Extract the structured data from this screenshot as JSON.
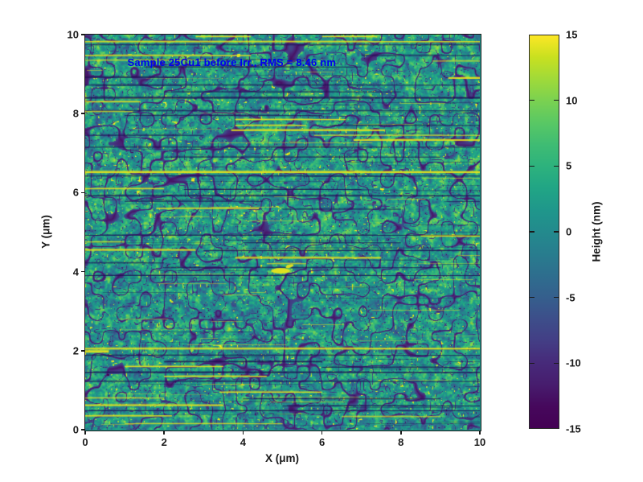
{
  "chart_data": {
    "type": "heatmap",
    "description": "AFM surface height map, 10x10 micrometer scan, viridis colormap",
    "annotation": {
      "text": "Sample 25Cu1 before Irr., RMS = 8.46 nm",
      "color": "#0000ee",
      "x_um": 1.1,
      "y_um": 9.3
    },
    "xlabel": "X (μm)",
    "ylabel": "Y (μm)",
    "xlim": [
      0,
      10
    ],
    "ylim": [
      0,
      10
    ],
    "xticks": {
      "values": [
        0,
        2,
        4,
        6,
        8,
        10
      ],
      "labels": [
        "0",
        "2",
        "4",
        "6",
        "8",
        "10"
      ]
    },
    "yticks": {
      "values": [
        0,
        2,
        4,
        6,
        8,
        10
      ],
      "labels": [
        "0",
        "2",
        "4",
        "6",
        "8",
        "10"
      ]
    },
    "grid": false,
    "frame_color": "#1a1a1a",
    "colorbar": {
      "label": "Height (nm)",
      "min": -15,
      "max": 15,
      "tick_values": [
        15,
        10,
        5,
        0,
        -5,
        -10,
        -15
      ],
      "tick_labels": [
        "15",
        "10",
        "5",
        "0",
        "-5",
        "-10",
        "-15"
      ],
      "notch_values": [
        10,
        5,
        0,
        -5,
        -10
      ],
      "colormap": "viridis"
    },
    "viridis_stops": [
      "#440154",
      "#46085c",
      "#471d6e",
      "#472a7a",
      "#433e85",
      "#3d4e8a",
      "#355f8d",
      "#2e6e8e",
      "#287d8e",
      "#238a8d",
      "#1f978b",
      "#21a585",
      "#2db27d",
      "#3fbc73",
      "#59c864",
      "#7ad151",
      "#a0da39",
      "#c8e020",
      "#fde725"
    ],
    "texture": {
      "seed": 7,
      "base_level": 0.57,
      "grain_amplitude": 0.8,
      "speckle_threshold": 0.9,
      "pit_threshold": 0.07,
      "crack_threshold": 0.935,
      "streak_colors": {
        "y": "#e8e41c",
        "d": "#1e1056"
      },
      "faint_dark_segments": 95,
      "faint_yellow_segments": 55,
      "blob": {
        "x": 4.95,
        "y": 4.02,
        "rx": 12,
        "ry": 3.5,
        "tail_x": 5.18,
        "tail_y": 4.14,
        "tail_rx": 5,
        "tail_ry": 2
      },
      "streaks": [
        {
          "y": 9.95,
          "x0": 2.8,
          "x1": 4.2,
          "c": "y",
          "w": 1.5
        },
        {
          "y": 9.95,
          "x0": 6.0,
          "x1": 7.4,
          "c": "y",
          "w": 1.5
        },
        {
          "y": 9.82,
          "x0": 0,
          "x1": 10,
          "c": "y",
          "w": 1.5
        },
        {
          "y": 9.74,
          "x0": 0,
          "x1": 10,
          "c": "d",
          "w": 1
        },
        {
          "y": 9.47,
          "x0": 0,
          "x1": 4.2,
          "c": "y",
          "w": 1.5
        },
        {
          "y": 9.47,
          "x0": 7,
          "x1": 10,
          "c": "d",
          "w": 1
        },
        {
          "y": 9.35,
          "x0": 0,
          "x1": 3.4,
          "c": "y",
          "w": 1
        },
        {
          "y": 9.33,
          "x0": 8.8,
          "x1": 10,
          "c": "y",
          "w": 1
        },
        {
          "y": 9.18,
          "x0": 1.5,
          "x1": 7,
          "c": "d",
          "w": 1
        },
        {
          "y": 8.92,
          "x0": 0,
          "x1": 2.5,
          "c": "d",
          "w": 1.5
        },
        {
          "y": 8.9,
          "x0": 9.2,
          "x1": 10,
          "c": "y",
          "w": 2
        },
        {
          "y": 8.72,
          "x0": 0,
          "x1": 10,
          "c": "d",
          "w": 1
        },
        {
          "y": 8.55,
          "x0": 2,
          "x1": 8,
          "c": "d",
          "w": 1
        },
        {
          "y": 8.4,
          "x0": 0,
          "x1": 10,
          "c": "d",
          "w": 2
        },
        {
          "y": 8.3,
          "x0": 0,
          "x1": 1.4,
          "c": "y",
          "w": 1.5
        },
        {
          "y": 8.07,
          "x0": 0,
          "x1": 10,
          "c": "d",
          "w": 1
        },
        {
          "y": 8.05,
          "x0": 0,
          "x1": 1.2,
          "c": "y",
          "w": 1
        },
        {
          "y": 7.95,
          "x0": 1,
          "x1": 6,
          "c": "d",
          "w": 1
        },
        {
          "y": 7.85,
          "x0": 3.8,
          "x1": 6.6,
          "c": "y",
          "w": 1.5
        },
        {
          "y": 7.7,
          "x0": 3.8,
          "x1": 5.6,
          "c": "y",
          "w": 1.5
        },
        {
          "y": 7.7,
          "x0": 6.2,
          "x1": 10,
          "c": "d",
          "w": 1
        },
        {
          "y": 7.58,
          "x0": 3.7,
          "x1": 7.6,
          "c": "y",
          "w": 2
        },
        {
          "y": 7.45,
          "x0": 5.8,
          "x1": 10,
          "c": "y",
          "w": 1
        },
        {
          "y": 7.45,
          "x0": 0,
          "x1": 3,
          "c": "d",
          "w": 1
        },
        {
          "y": 7.33,
          "x0": 6.8,
          "x1": 10,
          "c": "y",
          "w": 2
        },
        {
          "y": 7.15,
          "x0": 0,
          "x1": 10,
          "c": "d",
          "w": 1
        },
        {
          "y": 6.9,
          "x0": 2,
          "x1": 9,
          "c": "d",
          "w": 1
        },
        {
          "y": 6.52,
          "x0": 0,
          "x1": 10,
          "c": "y",
          "w": 2.5
        },
        {
          "y": 6.42,
          "x0": 0,
          "x1": 10,
          "c": "d",
          "w": 1
        },
        {
          "y": 6.1,
          "x0": 0,
          "x1": 2,
          "c": "y",
          "w": 1.5
        },
        {
          "y": 6.08,
          "x0": 2.5,
          "x1": 7,
          "c": "d",
          "w": 1
        },
        {
          "y": 5.92,
          "x0": 0,
          "x1": 10,
          "c": "d",
          "w": 1.5
        },
        {
          "y": 5.78,
          "x0": 1,
          "x1": 4.5,
          "c": "d",
          "w": 1
        },
        {
          "y": 5.6,
          "x0": 1.8,
          "x1": 4.4,
          "c": "y",
          "w": 1.5
        },
        {
          "y": 5.58,
          "x0": 5,
          "x1": 8,
          "c": "d",
          "w": 1
        },
        {
          "y": 4.92,
          "x0": 0,
          "x1": 10,
          "c": "d",
          "w": 1
        },
        {
          "y": 4.9,
          "x0": 8.5,
          "x1": 10,
          "c": "y",
          "w": 1.5
        },
        {
          "y": 4.75,
          "x0": 0,
          "x1": 1,
          "c": "y",
          "w": 1
        },
        {
          "y": 4.73,
          "x0": 4,
          "x1": 8,
          "c": "d",
          "w": 1
        },
        {
          "y": 4.55,
          "x0": 0,
          "x1": 2.8,
          "c": "y",
          "w": 2
        },
        {
          "y": 4.53,
          "x0": 3,
          "x1": 10,
          "c": "d",
          "w": 1
        },
        {
          "y": 4.35,
          "x0": 3.8,
          "x1": 7.5,
          "c": "y",
          "w": 2
        },
        {
          "y": 4.22,
          "x0": 0,
          "x1": 2,
          "c": "d",
          "w": 1
        },
        {
          "y": 4.2,
          "x0": 4.6,
          "x1": 5.6,
          "c": "y",
          "w": 1
        },
        {
          "y": 4.1,
          "x0": 2,
          "x1": 9,
          "c": "d",
          "w": 1
        },
        {
          "y": 3.9,
          "x0": 0,
          "x1": 10,
          "c": "d",
          "w": 1
        },
        {
          "y": 2.05,
          "x0": 0,
          "x1": 10,
          "c": "y",
          "w": 2
        },
        {
          "y": 1.98,
          "x0": 0,
          "x1": 0.6,
          "c": "y",
          "w": 3
        },
        {
          "y": 1.88,
          "x0": 0,
          "x1": 10,
          "c": "d",
          "w": 1
        },
        {
          "y": 1.72,
          "x0": 2,
          "x1": 6,
          "c": "d",
          "w": 1.5
        },
        {
          "y": 1.6,
          "x0": 1,
          "x1": 3.5,
          "c": "y",
          "w": 1.5
        },
        {
          "y": 1.58,
          "x0": 6,
          "x1": 10,
          "c": "d",
          "w": 1
        },
        {
          "y": 1.45,
          "x0": 0,
          "x1": 10,
          "c": "d",
          "w": 1.5
        },
        {
          "y": 1.35,
          "x0": 2,
          "x1": 4.6,
          "c": "y",
          "w": 1.5
        },
        {
          "y": 1.22,
          "x0": 0,
          "x1": 10,
          "c": "d",
          "w": 1
        },
        {
          "y": 0.95,
          "x0": 3.4,
          "x1": 6,
          "c": "y",
          "w": 1.5
        },
        {
          "y": 0.8,
          "x0": 0,
          "x1": 2,
          "c": "y",
          "w": 1
        },
        {
          "y": 0.78,
          "x0": 4,
          "x1": 9,
          "c": "d",
          "w": 1
        },
        {
          "y": 0.62,
          "x0": 0,
          "x1": 3.5,
          "c": "y",
          "w": 2
        },
        {
          "y": 0.6,
          "x0": 5,
          "x1": 10,
          "c": "d",
          "w": 1
        },
        {
          "y": 0.48,
          "x0": 0,
          "x1": 10,
          "c": "d",
          "w": 1
        },
        {
          "y": 0.35,
          "x0": 0,
          "x1": 2.2,
          "c": "y",
          "w": 1.5
        },
        {
          "y": 0.33,
          "x0": 6.5,
          "x1": 9,
          "c": "y",
          "w": 1
        },
        {
          "y": 0.15,
          "x0": 1,
          "x1": 5,
          "c": "y",
          "w": 1
        }
      ]
    }
  }
}
